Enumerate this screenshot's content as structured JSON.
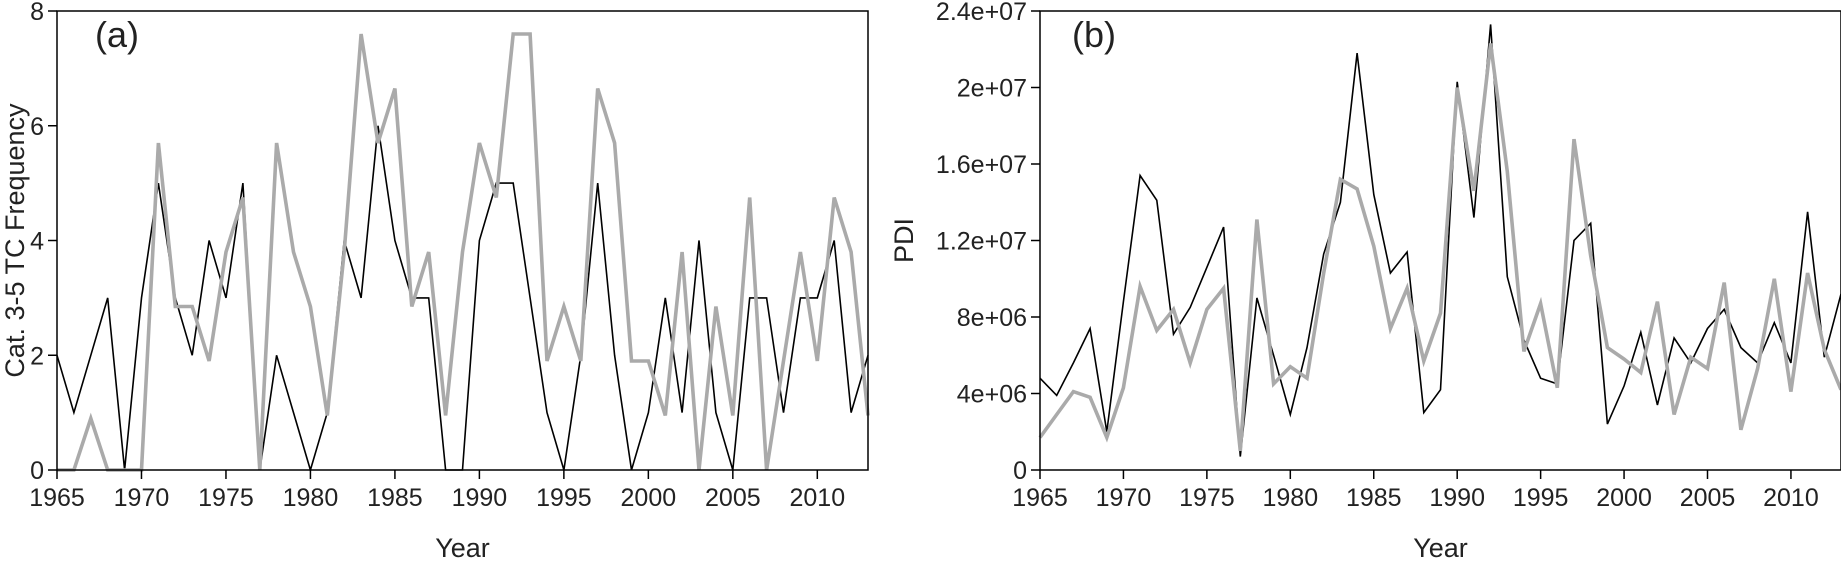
{
  "chart_data": [
    {
      "type": "line",
      "panel_label": "(a)",
      "xlabel": "Year",
      "ylabel": "Cat. 3-5 TC Frequency",
      "xlim": [
        1965,
        2013
      ],
      "ylim": [
        0,
        8
      ],
      "xticks": [
        1965,
        1970,
        1975,
        1980,
        1985,
        1990,
        1995,
        2000,
        2005,
        2010
      ],
      "yticks": [
        0,
        2,
        4,
        6,
        8
      ],
      "ytick_labels": [
        "0",
        "2",
        "4",
        "6",
        "8"
      ],
      "grid": false,
      "x": [
        1965,
        1966,
        1967,
        1968,
        1969,
        1970,
        1971,
        1972,
        1973,
        1974,
        1975,
        1976,
        1977,
        1978,
        1979,
        1980,
        1981,
        1982,
        1983,
        1984,
        1985,
        1986,
        1987,
        1988,
        1989,
        1990,
        1991,
        1992,
        1993,
        1994,
        1995,
        1996,
        1997,
        1998,
        1999,
        2000,
        2001,
        2002,
        2003,
        2004,
        2005,
        2006,
        2007,
        2008,
        2009,
        2010,
        2011,
        2012,
        2013
      ],
      "series": [
        {
          "color": "#000000",
          "values": [
            2,
            1,
            2,
            3,
            0,
            3,
            5,
            3,
            2,
            4,
            3,
            5,
            0,
            2,
            1,
            0,
            1,
            4,
            3,
            6,
            4,
            3,
            3,
            0,
            0,
            4,
            5,
            5,
            3,
            1,
            0,
            2,
            5,
            2,
            0,
            1,
            3,
            1,
            4,
            1,
            0,
            3,
            3,
            1,
            3,
            3,
            4,
            1,
            2
          ]
        },
        {
          "color": "#aaaaaa",
          "values": [
            0,
            0,
            0.9,
            0,
            0,
            0,
            5.7,
            2.85,
            2.85,
            1.9,
            3.8,
            4.75,
            0,
            5.7,
            3.8,
            2.85,
            0.95,
            3.8,
            7.6,
            5.7,
            6.65,
            2.85,
            3.8,
            0.95,
            3.8,
            5.7,
            4.75,
            7.6,
            7.6,
            1.9,
            2.85,
            1.9,
            6.65,
            5.7,
            1.9,
            1.9,
            0.95,
            3.8,
            0,
            2.85,
            0.95,
            4.75,
            0,
            1.9,
            3.8,
            1.9,
            4.75,
            3.8,
            0.95
          ]
        }
      ]
    },
    {
      "type": "line",
      "panel_label": "(b)",
      "xlabel": "Year",
      "ylabel": "PDI",
      "xlim": [
        1965,
        2013
      ],
      "ylim": [
        0,
        24000000
      ],
      "xticks": [
        1965,
        1970,
        1975,
        1980,
        1985,
        1990,
        1995,
        2000,
        2005,
        2010
      ],
      "yticks": [
        0,
        4000000,
        8000000,
        12000000,
        16000000,
        20000000,
        24000000
      ],
      "ytick_labels": [
        "0",
        "4e+06",
        "8e+06",
        "1.2e+07",
        "1.6e+07",
        "2e+07",
        "2.4e+07"
      ],
      "grid": false,
      "x": [
        1965,
        1966,
        1967,
        1968,
        1969,
        1970,
        1971,
        1972,
        1973,
        1974,
        1975,
        1976,
        1977,
        1978,
        1979,
        1980,
        1981,
        1982,
        1983,
        1984,
        1985,
        1986,
        1987,
        1988,
        1989,
        1990,
        1991,
        1992,
        1993,
        1994,
        1995,
        1996,
        1997,
        1998,
        1999,
        2000,
        2001,
        2002,
        2003,
        2004,
        2005,
        2006,
        2007,
        2008,
        2009,
        2010,
        2011,
        2012,
        2013
      ],
      "series": [
        {
          "color": "#000000",
          "values": [
            4800000,
            3900000,
            5600000,
            7400000,
            2000000,
            8800000,
            15400000,
            14100000,
            7100000,
            8500000,
            10600000,
            12700000,
            700000,
            9000000,
            6000000,
            2900000,
            6400000,
            11300000,
            14000000,
            21800000,
            14400000,
            10300000,
            11400000,
            3000000,
            4200000,
            20300000,
            13200000,
            23300000,
            10100000,
            6800000,
            4800000,
            4500000,
            12000000,
            12900000,
            2400000,
            4400000,
            7200000,
            3400000,
            6900000,
            5600000,
            7400000,
            8400000,
            6400000,
            5600000,
            7700000,
            5600000,
            13500000,
            5900000,
            9200000
          ]
        },
        {
          "color": "#aaaaaa",
          "values": [
            1700000,
            2900000,
            4100000,
            3800000,
            1700000,
            4300000,
            9600000,
            7300000,
            8400000,
            5600000,
            8400000,
            9500000,
            1000000,
            13100000,
            4500000,
            5400000,
            4800000,
            10300000,
            15200000,
            14700000,
            11700000,
            7400000,
            9500000,
            5700000,
            8200000,
            20000000,
            14600000,
            22300000,
            15600000,
            6200000,
            8700000,
            4300000,
            17300000,
            11200000,
            6400000,
            5800000,
            5100000,
            8800000,
            2900000,
            5900000,
            5300000,
            9800000,
            2100000,
            5300000,
            10000000,
            4100000,
            10300000,
            6300000,
            4200000
          ]
        }
      ]
    }
  ]
}
